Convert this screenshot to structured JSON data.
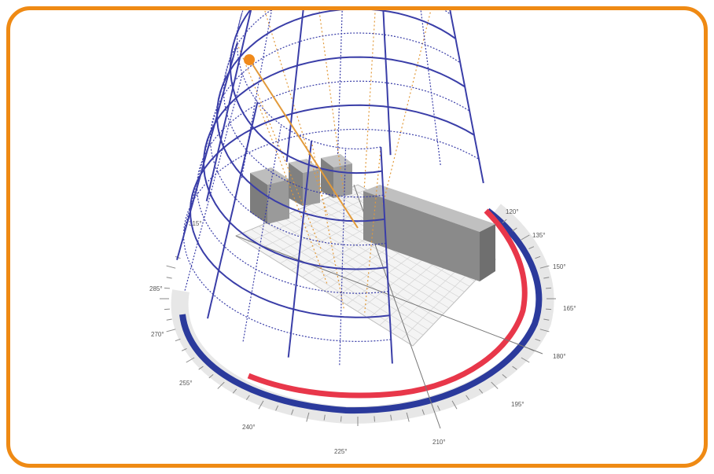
{
  "frame": {
    "border_color": "#ef8a14"
  },
  "colors": {
    "sun_path": "#3a3ea8",
    "hour_lines": "#e29a3a",
    "sun_marker": "#f08a1a",
    "shading_arc": "#e8374a",
    "compass_arc": "#2b3a9c",
    "building": "#8c8c8c"
  },
  "compass": {
    "labels": [
      "120°",
      "135°",
      "150°",
      "165°",
      "180°",
      "195°",
      "210°",
      "225°",
      "240°",
      "255°",
      "270°",
      "285°",
      "315°"
    ]
  }
}
